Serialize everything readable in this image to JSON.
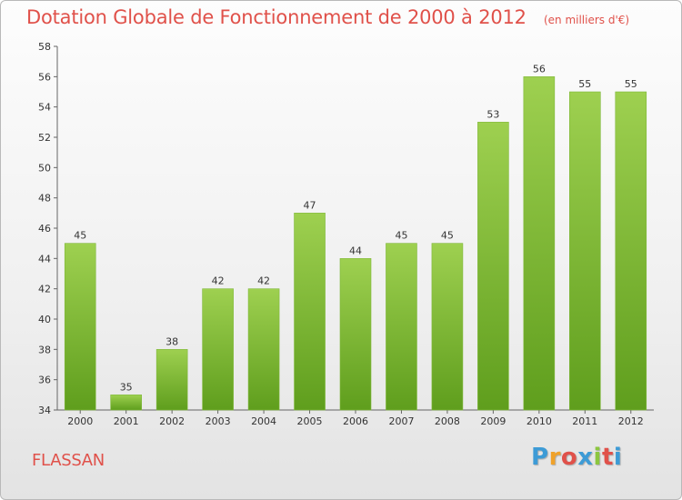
{
  "title": "Dotation Globale de Fonctionnement de 2000 à 2012",
  "subtitle": "(en milliers d'€)",
  "commune": "FLASSAN",
  "brand": {
    "letters": [
      "P",
      "r",
      "o",
      "x",
      "i",
      "t",
      "i"
    ],
    "colors": [
      "#3d9bd6",
      "#f0a22a",
      "#e0514a",
      "#3d9bd6",
      "#8cc63f",
      "#e0514a",
      "#3d9bd6"
    ]
  },
  "colors": {
    "bar_top": "#9ed050",
    "bar_bottom": "#5f9e1d",
    "accent": "#e0514a"
  },
  "chart_data": {
    "type": "bar",
    "categories": [
      "2000",
      "2001",
      "2002",
      "2003",
      "2004",
      "2005",
      "2006",
      "2007",
      "2008",
      "2009",
      "2010",
      "2011",
      "2012"
    ],
    "values": [
      45,
      35,
      38,
      42,
      42,
      47,
      44,
      45,
      45,
      53,
      56,
      55,
      55
    ],
    "ylim": [
      34,
      58
    ],
    "yticks": [
      34,
      36,
      38,
      40,
      42,
      44,
      46,
      48,
      50,
      52,
      54,
      56,
      58
    ],
    "grid": false,
    "legend": "none"
  }
}
